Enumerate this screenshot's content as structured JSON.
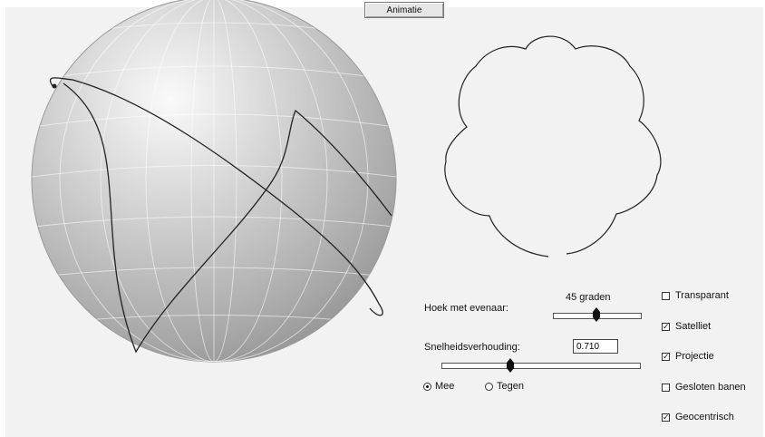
{
  "toolbar": {
    "animate_label": "Animatie"
  },
  "controls": {
    "angle_label": "Hoek met evenaar:",
    "angle_readout": "45 graden",
    "angle_fraction": 0.5,
    "speed_label": "Snelheidsverhouding:",
    "speed_value": "0.710",
    "speed_fraction": 0.35,
    "direction_options": [
      {
        "label": "Mee",
        "selected": true
      },
      {
        "label": "Tegen",
        "selected": false
      }
    ]
  },
  "options": [
    {
      "label": "Transparant",
      "checked": false
    },
    {
      "label": "Satelliet",
      "checked": true
    },
    {
      "label": "Projectie",
      "checked": true
    },
    {
      "label": "Gesloten banen",
      "checked": false
    },
    {
      "label": "Geocentrisch",
      "checked": true
    }
  ],
  "icons": {
    "check_glyph": "✓"
  },
  "colors": {
    "sphere_light": "#fafafa",
    "sphere_dark": "#8e8e8e",
    "curve": "#222222"
  }
}
